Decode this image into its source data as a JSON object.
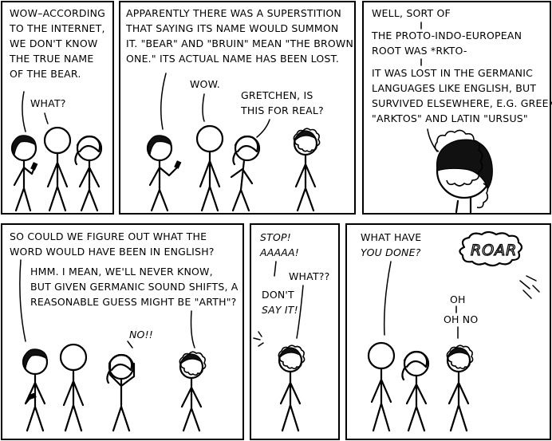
{
  "panels": [
    {
      "id": "p1",
      "lines": [
        {
          "text": "WOW–ACCORDING"
        },
        {
          "text": "TO THE INTERNET,"
        },
        {
          "text": "WE DON'T KNOW"
        },
        {
          "text": "THE TRUE NAME"
        },
        {
          "text": "OF THE BEAR."
        },
        {
          "text": "WHAT?"
        }
      ]
    },
    {
      "id": "p2",
      "lines": [
        {
          "text": "APPARENTLY THERE WAS A SUPERSTITION"
        },
        {
          "text": "THAT SAYING ITS NAME WOULD SUMMON"
        },
        {
          "text": "IT. \"BEAR\" AND \"BRUIN\" MEAN \"THE BROWN"
        },
        {
          "text": "ONE.\" ITS ACTUAL NAME HAS BEEN LOST."
        },
        {
          "text": "WOW."
        },
        {
          "text": "GRETCHEN, IS"
        },
        {
          "text": "THIS FOR REAL?"
        }
      ]
    },
    {
      "id": "p3",
      "lines": [
        {
          "text": "WELL, SORT OF"
        },
        {
          "text": "THE PROTO-INDO-EUROPEAN"
        },
        {
          "text": "ROOT WAS *RKTO-"
        },
        {
          "text": "IT WAS LOST IN THE GERMANIC"
        },
        {
          "text": "LANGUAGES LIKE ENGLISH, BUT"
        },
        {
          "text": "SURVIVED ELSEWHERE, E.G. GREEK"
        },
        {
          "text": "\"ARKTOS\" AND LATIN \"URSUS\""
        }
      ]
    },
    {
      "id": "p4",
      "lines": [
        {
          "text": "SO COULD WE FIGURE OUT WHAT THE"
        },
        {
          "text": "WORD WOULD HAVE BEEN IN ENGLISH?"
        },
        {
          "text": "HMM. I MEAN, WE'LL NEVER KNOW,"
        },
        {
          "text": "BUT GIVEN GERMANIC SOUND SHIFTS, A"
        },
        {
          "text": "REASONABLE GUESS MIGHT BE \"ARTH\"?"
        },
        {
          "text": "NO!!"
        }
      ]
    },
    {
      "id": "p5",
      "lines": [
        {
          "text": "STOP!"
        },
        {
          "text": "AAAAA!"
        },
        {
          "text": "WHAT??"
        },
        {
          "text": "DON'T"
        },
        {
          "text": "SAY IT!"
        }
      ]
    },
    {
      "id": "p6",
      "lines": [
        {
          "text": "WHAT HAVE"
        },
        {
          "text": "YOU DONE?"
        },
        {
          "text": "ROAR"
        },
        {
          "text": "OH"
        },
        {
          "text": "OH NO"
        }
      ]
    }
  ]
}
